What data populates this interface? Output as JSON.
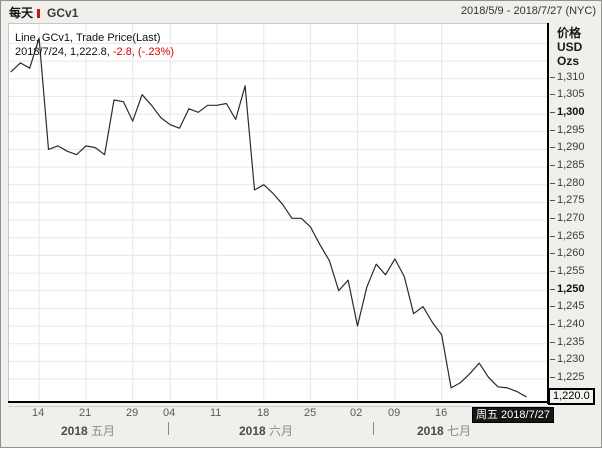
{
  "header": {
    "frequency": "每天",
    "symbol": "GCv1",
    "date_range": "2018/5/9 - 2018/7/27 (NYC)"
  },
  "legend": {
    "line1": "Line, GCv1, Trade Price(Last)",
    "line2_black": "2018/7/24, 1,222.8,",
    "line2_red": " -2.8, (-.23%)"
  },
  "axis_right": {
    "title_lines": "价格\nUSD\nOzs",
    "tick_values": [
      1310,
      1305,
      1300,
      1295,
      1290,
      1285,
      1280,
      1275,
      1270,
      1265,
      1260,
      1255,
      1250,
      1245,
      1240,
      1235,
      1230,
      1225
    ],
    "bold_ticks": [
      1300,
      1250
    ],
    "last_price_label": "1,220.0"
  },
  "axis_x": {
    "last_date_label": "周五 2018/7/27"
  },
  "colors": {
    "line": "#2b2b2b",
    "grid": "#e7e7e7",
    "negative": "#dd0000",
    "frame_bg": "#f0efec",
    "plot_bg": "#ffffff",
    "marker_bg": "#161616"
  },
  "chart_data": {
    "type": "line",
    "title": "每天 GCv1",
    "series_label": "Line, GCv1, Trade Price(Last)",
    "ylabel": "价格 USD Ozs",
    "ylim": [
      1218.5,
      1325.5
    ],
    "grid": true,
    "legend_position": "top-left",
    "x": [
      "2018/5/9",
      "2018/5/10",
      "2018/5/11",
      "2018/5/14",
      "2018/5/15",
      "2018/5/16",
      "2018/5/17",
      "2018/5/18",
      "2018/5/21",
      "2018/5/22",
      "2018/5/23",
      "2018/5/24",
      "2018/5/25",
      "2018/5/29",
      "2018/5/30",
      "2018/5/31",
      "2018/6/1",
      "2018/6/4",
      "2018/6/5",
      "2018/6/6",
      "2018/6/7",
      "2018/6/8",
      "2018/6/11",
      "2018/6/12",
      "2018/6/13",
      "2018/6/14",
      "2018/6/15",
      "2018/6/18",
      "2018/6/19",
      "2018/6/20",
      "2018/6/21",
      "2018/6/22",
      "2018/6/25",
      "2018/6/26",
      "2018/6/27",
      "2018/6/28",
      "2018/6/29",
      "2018/7/2",
      "2018/7/3",
      "2018/7/5",
      "2018/7/6",
      "2018/7/9",
      "2018/7/10",
      "2018/7/11",
      "2018/7/12",
      "2018/7/13",
      "2018/7/16",
      "2018/7/17",
      "2018/7/18",
      "2018/7/19",
      "2018/7/20",
      "2018/7/23",
      "2018/7/24",
      "2018/7/25",
      "2018/7/26",
      "2018/7/27"
    ],
    "prices": [
      1312.0,
      1314.5,
      1313.0,
      1321.5,
      1290.0,
      1291.0,
      1289.5,
      1288.5,
      1291.0,
      1290.5,
      1288.5,
      1304.0,
      1303.5,
      1298.0,
      1305.5,
      1302.5,
      1299.0,
      1297.0,
      1296.0,
      1301.5,
      1300.5,
      1302.5,
      1302.5,
      1303.0,
      1298.5,
      1308.0,
      1278.5,
      1280.0,
      1277.5,
      1274.5,
      1270.5,
      1270.5,
      1268.0,
      1263.0,
      1258.5,
      1250.0,
      1253.0,
      1240.0,
      1251.0,
      1257.5,
      1254.5,
      1259.0,
      1254.0,
      1243.5,
      1245.5,
      1241.0,
      1237.5,
      1222.5,
      1224.0,
      1226.5,
      1229.5,
      1225.5,
      1222.8,
      1222.5,
      1221.5,
      1220.0
    ],
    "grid_yticks": [
      1225,
      1230,
      1235,
      1240,
      1245,
      1250,
      1255,
      1260,
      1265,
      1270,
      1275,
      1280,
      1285,
      1290,
      1295,
      1300,
      1305,
      1310,
      1315,
      1320
    ],
    "xticks": [
      {
        "label": "14",
        "i": 3
      },
      {
        "label": "21",
        "i": 8
      },
      {
        "label": "29",
        "i": 13
      },
      {
        "label": "04",
        "i": 17
      },
      {
        "label": "11",
        "i": 22
      },
      {
        "label": "18",
        "i": 27
      },
      {
        "label": "25",
        "i": 32
      },
      {
        "label": "02",
        "i": 37
      },
      {
        "label": "09",
        "i": 41
      },
      {
        "label": "16",
        "i": 46
      }
    ],
    "months": [
      {
        "year": "2018",
        "name": "五月",
        "center_i": 9,
        "sep_i": null
      },
      {
        "year": "2018",
        "name": "六月",
        "center_i": 28,
        "sep_i": 16.9
      },
      {
        "year": "2018",
        "name": "七月",
        "center_i": 47,
        "sep_i": 38.8
      }
    ],
    "last_price": 1220.0,
    "last_date": "2018/7/27"
  }
}
